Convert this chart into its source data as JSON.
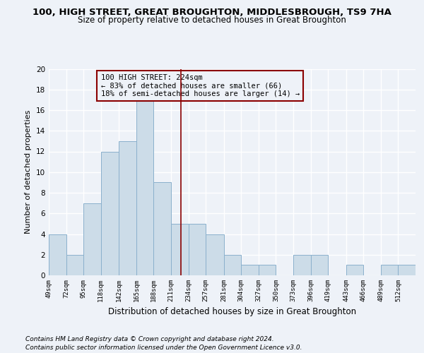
{
  "title": "100, HIGH STREET, GREAT BROUGHTON, MIDDLESBROUGH, TS9 7HA",
  "subtitle": "Size of property relative to detached houses in Great Broughton",
  "xlabel": "Distribution of detached houses by size in Great Broughton",
  "ylabel": "Number of detached properties",
  "bar_edges": [
    49,
    72,
    95,
    118,
    142,
    165,
    188,
    211,
    234,
    257,
    281,
    304,
    327,
    350,
    373,
    396,
    419,
    443,
    466,
    489,
    512
  ],
  "bar_values": [
    4,
    2,
    7,
    12,
    13,
    17,
    9,
    5,
    5,
    4,
    2,
    1,
    1,
    0,
    2,
    2,
    0,
    1,
    0,
    1,
    1
  ],
  "bar_color": "#ccdce8",
  "bar_edge_color": "#8ab0cc",
  "vline_x": 224,
  "vline_color": "#8b0000",
  "annotation_text": "100 HIGH STREET: 224sqm\n← 83% of detached houses are smaller (66)\n18% of semi-detached houses are larger (14) →",
  "annotation_box_color": "#8b0000",
  "ylim": [
    0,
    20
  ],
  "yticks": [
    0,
    2,
    4,
    6,
    8,
    10,
    12,
    14,
    16,
    18,
    20
  ],
  "tick_labels": [
    "49sqm",
    "72sqm",
    "95sqm",
    "118sqm",
    "142sqm",
    "165sqm",
    "188sqm",
    "211sqm",
    "234sqm",
    "257sqm",
    "281sqm",
    "304sqm",
    "327sqm",
    "350sqm",
    "373sqm",
    "396sqm",
    "419sqm",
    "443sqm",
    "466sqm",
    "489sqm",
    "512sqm"
  ],
  "footer_line1": "Contains HM Land Registry data © Crown copyright and database right 2024.",
  "footer_line2": "Contains public sector information licensed under the Open Government Licence v3.0.",
  "bg_color": "#eef2f8",
  "grid_color": "#ffffff",
  "title_fontsize": 9.5,
  "subtitle_fontsize": 8.5,
  "ylabel_fontsize": 8,
  "xlabel_fontsize": 8.5,
  "tick_fontsize": 6.5,
  "footer_fontsize": 6.5,
  "ann_fontsize": 7.5
}
